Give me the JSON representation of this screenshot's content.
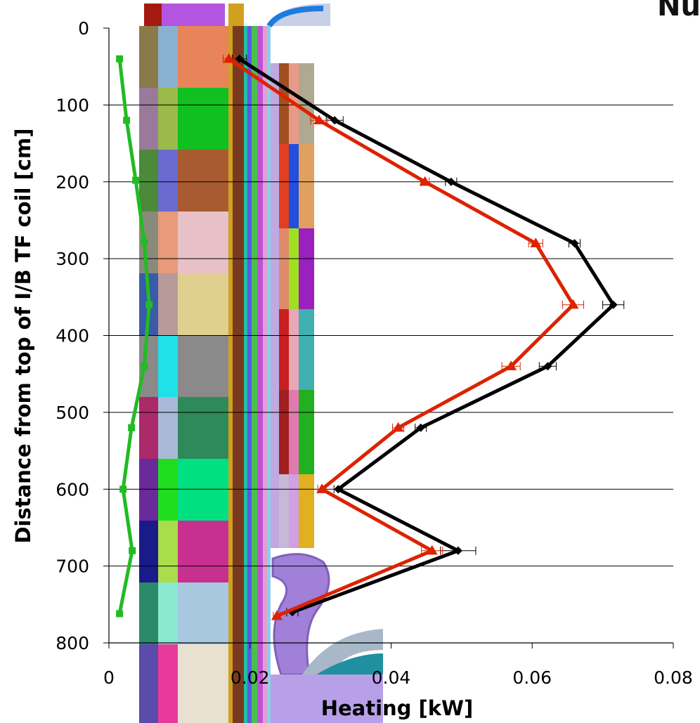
{
  "corner_text": "Nu",
  "chart_data": {
    "type": "line",
    "title": "",
    "xlabel": "Heating [kW]",
    "ylabel": "Distance from top of I/B TF coil [cm]",
    "xlim": [
      0,
      0.08
    ],
    "ylim": [
      0,
      800
    ],
    "y_inverted": true,
    "grid": "horizontal",
    "x_ticks": [
      0,
      0.02,
      0.04,
      0.06,
      0.08
    ],
    "x_tick_labels": [
      "0",
      "0.02",
      "0.04",
      "0.06",
      "0.08"
    ],
    "y_ticks": [
      0,
      100,
      200,
      300,
      400,
      500,
      600,
      700,
      800
    ],
    "y_tick_labels": [
      "0",
      "100",
      "200",
      "300",
      "400",
      "500",
      "600",
      "700",
      "800"
    ],
    "background": "colorful geometry model cross-section rendering",
    "series": [
      {
        "color": "#000000",
        "marker": "diamond",
        "points": [
          {
            "x": 0.0185,
            "y": 40,
            "err": 0.001
          },
          {
            "x": 0.032,
            "y": 120,
            "err": 0.0012
          },
          {
            "x": 0.0485,
            "y": 200,
            "err": 0.0008
          },
          {
            "x": 0.066,
            "y": 280,
            "err": 0.0008
          },
          {
            "x": 0.0715,
            "y": 360,
            "err": 0.0015
          },
          {
            "x": 0.0622,
            "y": 440,
            "err": 0.0012
          },
          {
            "x": 0.0442,
            "y": 520,
            "err": 0.0008
          },
          {
            "x": 0.0325,
            "y": 600,
            "err": 0.0006
          },
          {
            "x": 0.0495,
            "y": 680,
            "err": 0.0025
          },
          {
            "x": 0.026,
            "y": 760,
            "err": 0.0008
          }
        ]
      },
      {
        "color": "#dd2200",
        "marker": "triangle",
        "points": [
          {
            "x": 0.017,
            "y": 40,
            "err": 0.0008
          },
          {
            "x": 0.0298,
            "y": 120,
            "err": 0.0012
          },
          {
            "x": 0.0448,
            "y": 200,
            "err": 0.0006
          },
          {
            "x": 0.0605,
            "y": 280,
            "err": 0.001
          },
          {
            "x": 0.0658,
            "y": 360,
            "err": 0.0015
          },
          {
            "x": 0.057,
            "y": 440,
            "err": 0.0013
          },
          {
            "x": 0.041,
            "y": 520,
            "err": 0.0008
          },
          {
            "x": 0.0302,
            "y": 600,
            "err": 0.0006
          },
          {
            "x": 0.0458,
            "y": 680,
            "err": 0.0015
          },
          {
            "x": 0.0238,
            "y": 765,
            "err": 0.0005
          }
        ]
      },
      {
        "color": "#22bb22",
        "marker": "square",
        "points": [
          {
            "x": 0.0015,
            "y": 40
          },
          {
            "x": 0.0025,
            "y": 120
          },
          {
            "x": 0.0038,
            "y": 198
          },
          {
            "x": 0.005,
            "y": 278
          },
          {
            "x": 0.0057,
            "y": 360
          },
          {
            "x": 0.005,
            "y": 440
          },
          {
            "x": 0.0032,
            "y": 520
          },
          {
            "x": 0.002,
            "y": 600
          },
          {
            "x": 0.0033,
            "y": 680
          },
          {
            "x": 0.0015,
            "y": 762
          }
        ]
      }
    ]
  }
}
